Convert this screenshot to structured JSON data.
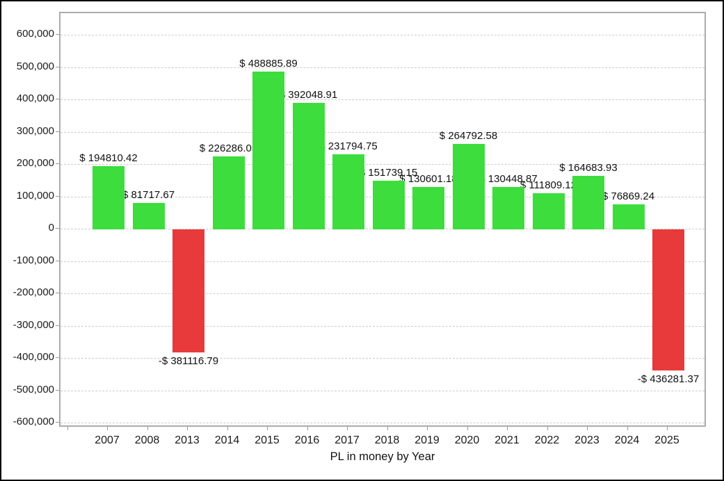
{
  "figure": {
    "background": "#ffffff",
    "border_color": "#000000"
  },
  "chart_data": {
    "type": "bar",
    "title": "PL in money by Year",
    "xlabel": "PL in money by Year",
    "ylabel": "",
    "legend": "none",
    "grid": "horizontal-dashed",
    "categories": [
      "2007",
      "2008",
      "2013",
      "2014",
      "2015",
      "2016",
      "2017",
      "2018",
      "2019",
      "2020",
      "2021",
      "2022",
      "2023",
      "2024",
      "2025"
    ],
    "values": [
      194810.42,
      81717.67,
      -381116.79,
      226286.05,
      488885.89,
      392048.91,
      231794.75,
      151739.15,
      130601.18,
      264792.58,
      130448.87,
      111809.12,
      164683.93,
      76869.24,
      -436281.37
    ],
    "bar_labels": [
      "$ 194810.42",
      "$ 81717.67",
      "-$ 381116.79",
      "$ 226286.05",
      "$ 488885.89",
      "$ 392048.91",
      "$ 231794.75",
      "$ 151739.15",
      "$ 130601.18",
      "$ 264792.58",
      "$ 130448.87",
      "$ 111809.12",
      "$ 164683.93",
      "$ 76869.24",
      "-$ 436281.37"
    ],
    "ytick_values": [
      600000,
      500000,
      400000,
      300000,
      200000,
      100000,
      0,
      -100000,
      -200000,
      -300000,
      -400000,
      -500000,
      -600000
    ],
    "ytick_labels": [
      "600,000",
      "500,000",
      "400,000",
      "300,000",
      "200,000",
      "100,000",
      "0",
      "-100,000",
      "-200,000",
      "-300,000",
      "-400,000",
      "-500,000",
      "-600,000"
    ],
    "ylim": [
      -615000,
      669000
    ],
    "colors": {
      "positive": "#3cdd3c",
      "negative": "#e83a3a",
      "grid": "#cccccc",
      "axis_border": "#ababab",
      "tick": "#999999",
      "text": "#1a1a1a"
    }
  }
}
